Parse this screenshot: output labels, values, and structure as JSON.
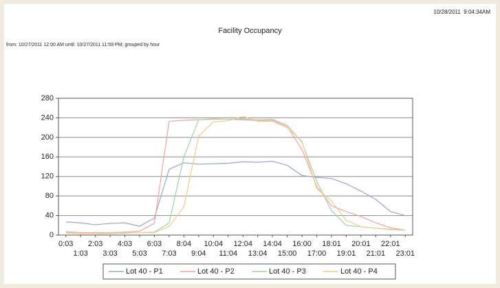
{
  "chart_data": {
    "type": "line",
    "timestamp": "10/28/2011  9:04:34AM",
    "title": "Facility Occupancy",
    "subtitle": "from: 10/27/2011 12:00 AM until: 10/27/2011 11:59 PM;  grouped by hour",
    "categories": [
      "0:03",
      "1:03",
      "2:03",
      "3:03",
      "4:03",
      "5:03",
      "6:03",
      "7:03",
      "8:04",
      "9:04",
      "10:04",
      "11:04",
      "12:04",
      "13:04",
      "14:04",
      "15:00",
      "16:00",
      "17:00",
      "18:01",
      "19:01",
      "20:01",
      "21:01",
      "22:01",
      "23:01"
    ],
    "series": [
      {
        "name": "Lot 40 - P1",
        "color": "#97a6c8",
        "values": [
          27,
          25,
          21,
          24,
          25,
          18,
          35,
          135,
          148,
          145,
          146,
          147,
          150,
          149,
          151,
          143,
          122,
          118,
          116,
          105,
          90,
          73,
          48,
          40
        ]
      },
      {
        "name": "Lot 40 - P2",
        "color": "#f2a3a3",
        "values": [
          7,
          5,
          5,
          5,
          6,
          8,
          24,
          233,
          235,
          236,
          237,
          237,
          236,
          234,
          235,
          222,
          175,
          100,
          60,
          48,
          38,
          25,
          15,
          10
        ]
      },
      {
        "name": "Lot 40 - P3",
        "color": "#a3d3a3",
        "values": [
          5,
          3,
          3,
          3,
          4,
          5,
          6,
          25,
          160,
          236,
          238,
          237,
          238,
          236,
          237,
          225,
          190,
          110,
          50,
          20,
          17,
          14,
          12,
          10
        ]
      },
      {
        "name": "Lot 40 - P4",
        "color": "#f8c88e",
        "values": [
          4,
          3,
          3,
          4,
          5,
          5,
          5,
          18,
          58,
          202,
          232,
          234,
          243,
          233,
          233,
          220,
          192,
          95,
          70,
          30,
          17,
          14,
          11,
          10
        ]
      }
    ],
    "ylim": [
      0,
      280
    ],
    "yticks": [
      0,
      40,
      80,
      120,
      160,
      200,
      240,
      280
    ],
    "grid": true,
    "legend": "bottom"
  }
}
